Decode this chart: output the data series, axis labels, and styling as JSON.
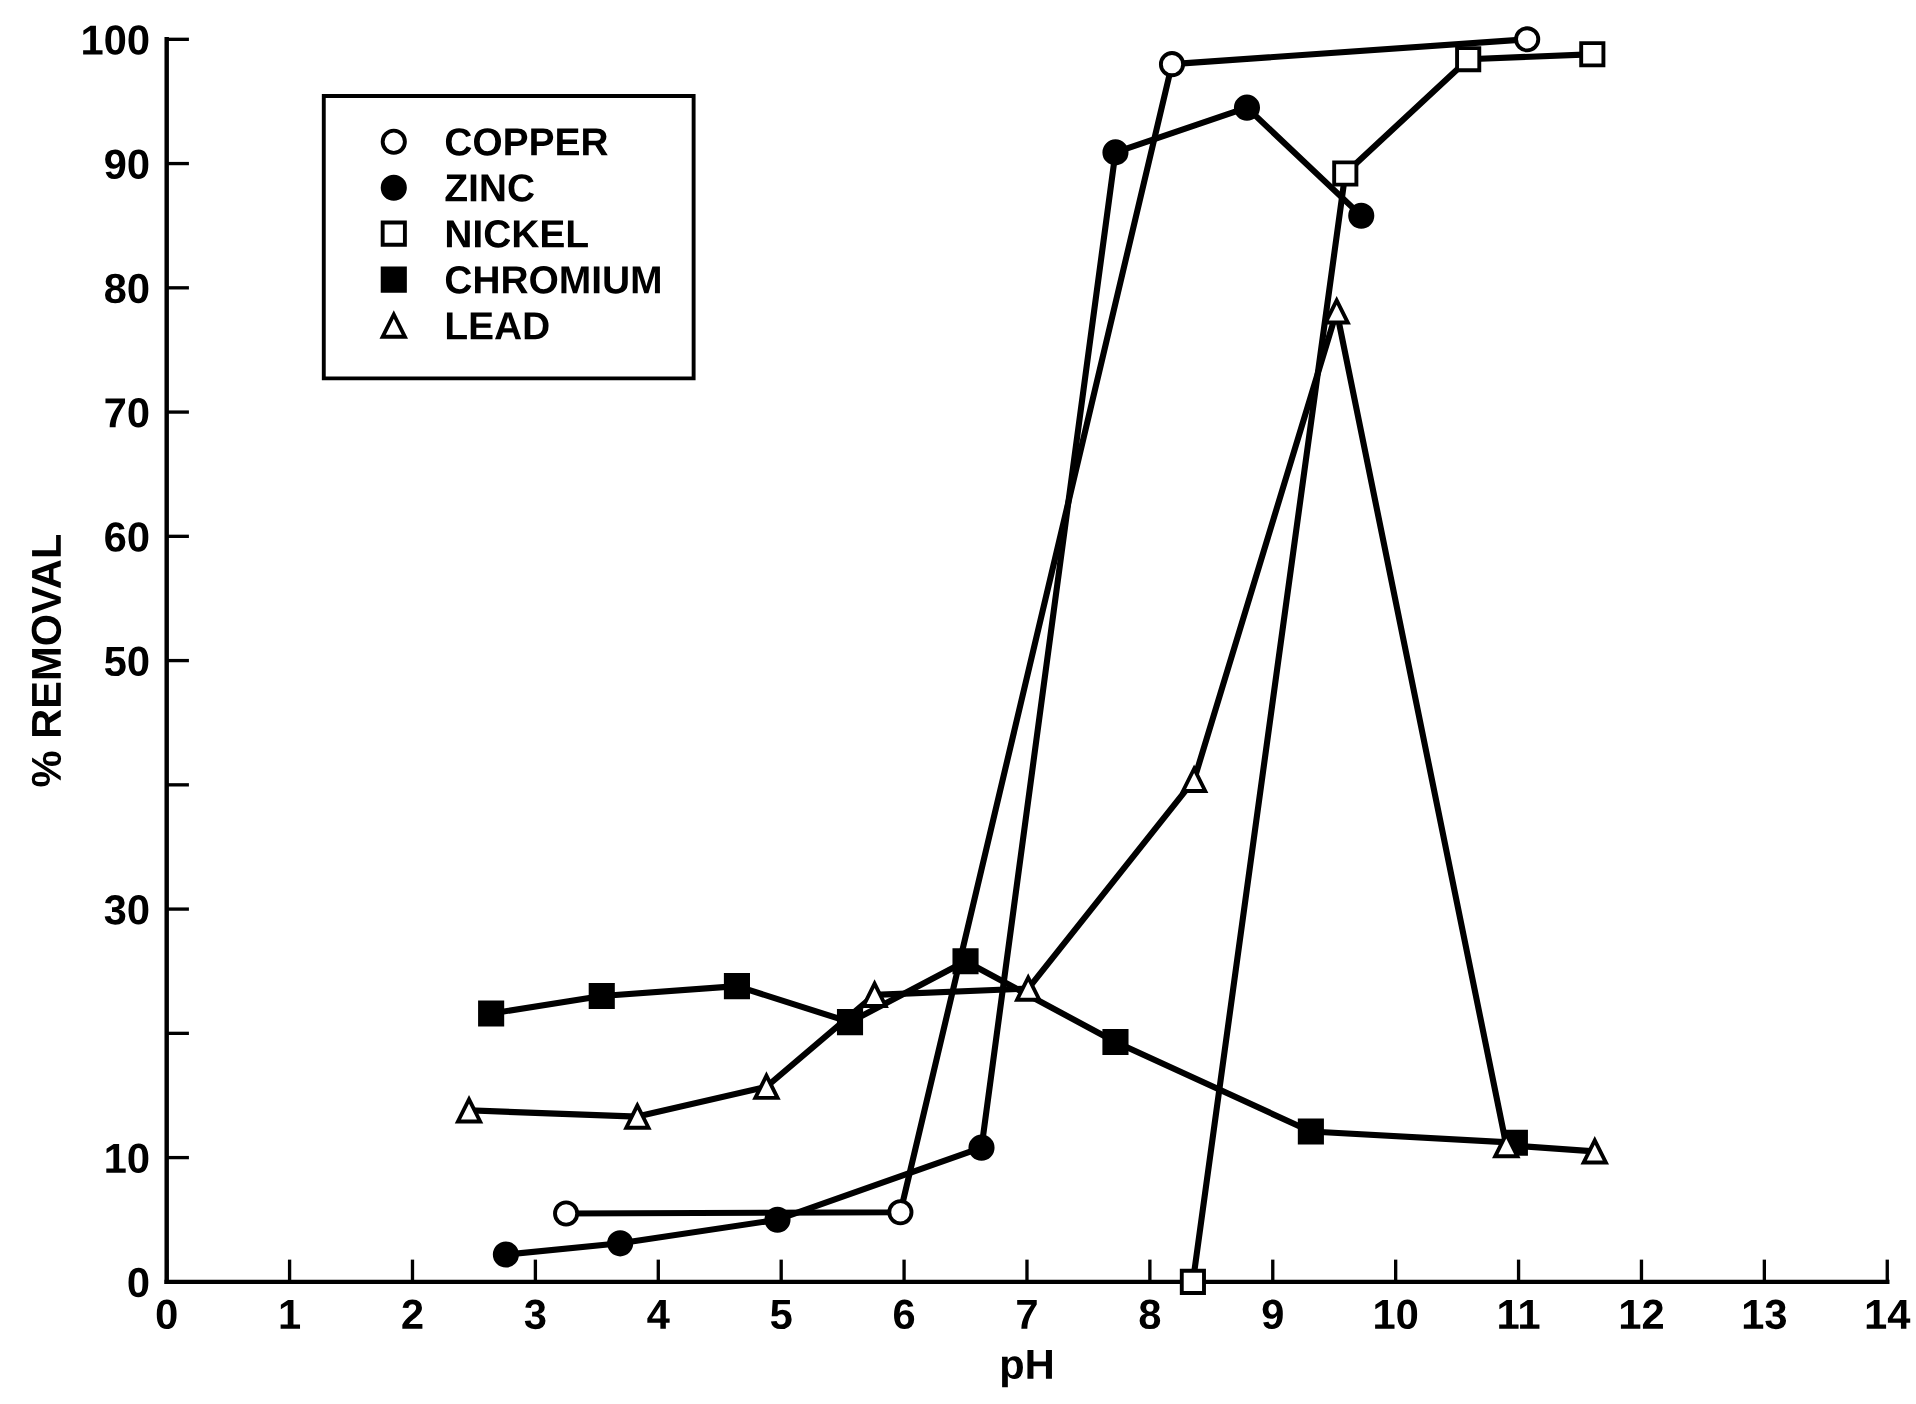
{
  "chart_data": {
    "type": "line",
    "xlabel": "pH",
    "ylabel": "% REMOVAL",
    "xlim": [
      0,
      14
    ],
    "xticks": [
      0,
      1,
      2,
      3,
      4,
      5,
      6,
      7,
      8,
      9,
      10,
      11,
      12,
      13,
      14
    ],
    "ylim": [
      0,
      100
    ],
    "yticks": [
      0,
      10,
      {
        "value": 20,
        "label": null
      },
      30,
      {
        "value": 40,
        "label": null
      },
      50,
      60,
      70,
      80,
      90,
      100
    ],
    "grid": false,
    "legend": "top left",
    "line_style": "solid",
    "series": [
      {
        "name": "COPPER",
        "color": "#000000",
        "marker": "circle-open",
        "x": [
          3.25,
          5.97,
          8.18,
          11.07
        ],
        "values": [
          5.5,
          5.6,
          98.0,
          100
        ]
      },
      {
        "name": "ZINC",
        "color": "#000000",
        "marker": "circle",
        "x": [
          2.76,
          3.69,
          4.97,
          6.63,
          7.72,
          8.79,
          9.72
        ],
        "values": [
          2.2,
          3.1,
          5.0,
          10.8,
          90.9,
          94.5,
          85.8
        ]
      },
      {
        "name": "NICKEL",
        "color": "#000000",
        "marker": "square-open",
        "x": [
          8.35,
          9.59,
          10.59,
          11.6
        ],
        "values": [
          0,
          89.2,
          98.4,
          98.8
        ]
      },
      {
        "name": "CHROMIUM",
        "color": "#000000",
        "marker": "square",
        "x": [
          2.64,
          3.54,
          4.64,
          5.56,
          6.5,
          7.72,
          9.31,
          10.97
        ],
        "values": [
          21.6,
          23.0,
          23.8,
          20.9,
          25.8,
          19.3,
          12.1,
          11.2
        ]
      },
      {
        "name": "LEAD",
        "color": "#000000",
        "marker": "triangle-open",
        "x": [
          2.46,
          3.83,
          4.88,
          5.76,
          7.01,
          8.36,
          9.52,
          10.9,
          11.62
        ],
        "values": [
          13.8,
          13.3,
          15.7,
          23.1,
          23.6,
          40.4,
          78.1,
          11.0,
          10.5
        ]
      }
    ]
  }
}
